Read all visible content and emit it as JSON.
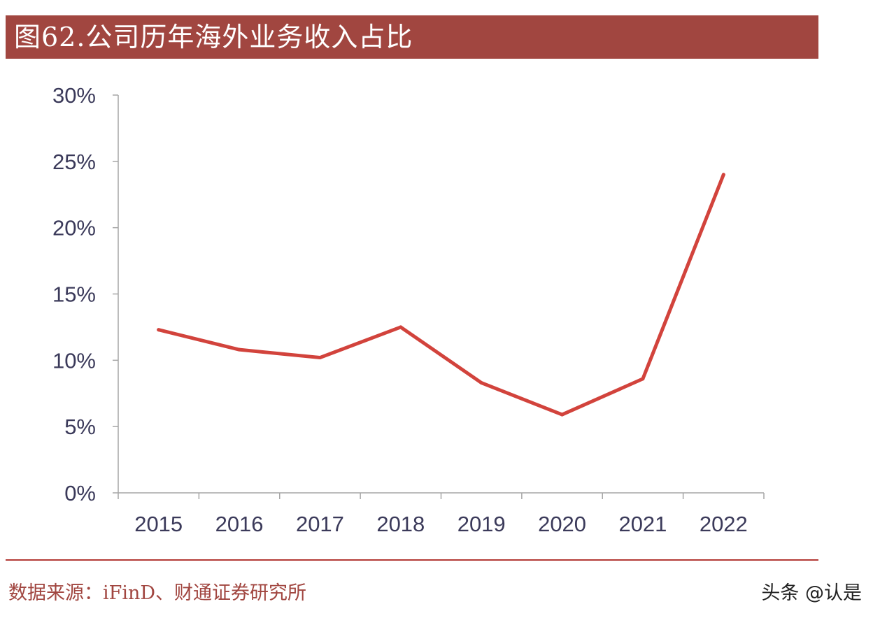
{
  "title": "图62.公司历年海外业务收入占比",
  "source": "数据来源：iFinD、财通证券研究所",
  "watermark": "头条 @认是",
  "colors": {
    "title_bar": "#a14640",
    "line": "#d2433c",
    "axis": "#a6a6a6",
    "text": "#3b3a5a"
  },
  "chart_data": {
    "type": "line",
    "title": "图62.公司历年海外业务收入占比",
    "categories": [
      "2015",
      "2016",
      "2017",
      "2018",
      "2019",
      "2020",
      "2021",
      "2022"
    ],
    "series": [
      {
        "values": [
          12.3,
          10.8,
          10.2,
          12.5,
          8.3,
          5.9,
          8.6,
          24.0
        ]
      }
    ],
    "yticks": [
      "0%",
      "5%",
      "10%",
      "15%",
      "20%",
      "25%",
      "30%"
    ],
    "ylim": [
      0,
      30
    ],
    "grid": false,
    "legend": "none"
  }
}
